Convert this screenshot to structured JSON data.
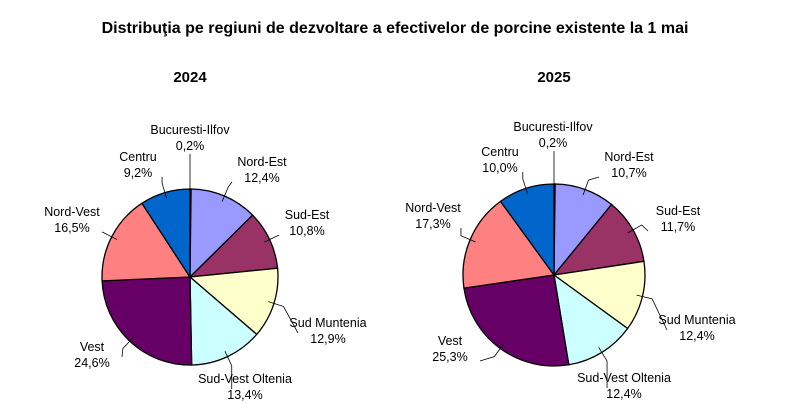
{
  "chart_data": [
    {
      "type": "pie",
      "title": "Distribuţia pe regiuni de dezvoltare a efectivelor de porcine existente la 1 mai",
      "subtitle": "2024",
      "categories": [
        "Bucuresti-Ilfov",
        "Nord-Est",
        "Sud-Est",
        "Sud Muntenia",
        "Sud-Vest Oltenia",
        "Vest",
        "Nord-Vest",
        "Centru"
      ],
      "values": [
        0.2,
        12.4,
        10.8,
        12.9,
        13.4,
        24.6,
        16.5,
        9.2
      ],
      "value_labels": [
        "0,2%",
        "12,4%",
        "10,8%",
        "12,9%",
        "13,4%",
        "24,6%",
        "16,5%",
        "9,2%"
      ],
      "colors": [
        "#000080",
        "#9999FF",
        "#993366",
        "#FFFFCC",
        "#CCFFFF",
        "#660066",
        "#FF8080",
        "#0066CC"
      ]
    },
    {
      "type": "pie",
      "title": "Distribuţia pe regiuni de dezvoltare a efectivelor de porcine existente la 1 mai",
      "subtitle": "2025",
      "categories": [
        "Bucuresti-Ilfov",
        "Nord-Est",
        "Sud-Est",
        "Sud Muntenia",
        "Sud-Vest Oltenia",
        "Vest",
        "Nord-Vest",
        "Centru"
      ],
      "values": [
        0.2,
        10.7,
        11.7,
        12.4,
        12.4,
        25.3,
        17.3,
        10.0
      ],
      "value_labels": [
        "0,2%",
        "10,7%",
        "11,7%",
        "12,4%",
        "12,4%",
        "25,3%",
        "17,3%",
        "10,0%"
      ],
      "colors": [
        "#000080",
        "#9999FF",
        "#993366",
        "#FFFFCC",
        "#CCFFFF",
        "#660066",
        "#FF8080",
        "#0066CC"
      ]
    }
  ]
}
